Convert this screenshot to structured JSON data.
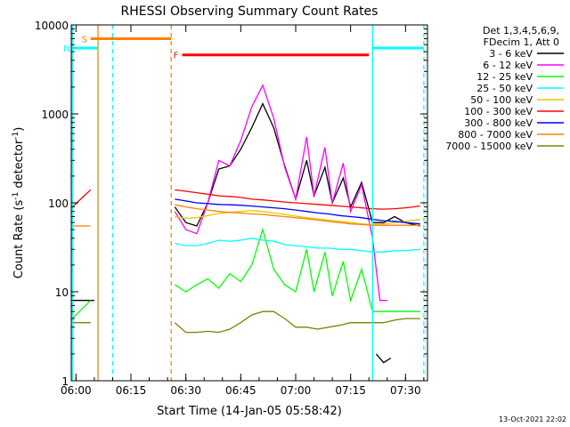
{
  "chart_data": {
    "type": "line",
    "title": "RHESSI Observing Summary Count Rates",
    "xlabel": "Start Time (14-Jan-05 05:58:42)",
    "ylabel": "Count Rate (s",
    "ylabel_sup": "-1",
    "ylabel_tail": " detector",
    "ylabel_close": ")",
    "y_scale": "log",
    "xlim": [
      "05:58:42",
      "07:36:00"
    ],
    "ylim": [
      1,
      10000
    ],
    "x_tick_labels": [
      "06:00",
      "06:15",
      "06:30",
      "06:45",
      "07:00",
      "07:15",
      "07:30"
    ],
    "x_ticks": [
      "06:00",
      "06:15",
      "06:30",
      "06:45",
      "07:00",
      "07:15",
      "07:30"
    ],
    "y_tick_labels": [
      "1",
      "10",
      "100",
      "1000",
      "10000"
    ],
    "y_ticks": [
      1,
      10,
      100,
      1000,
      10000
    ],
    "timestamp": "13-Oct-2021 22:02",
    "legend_header": [
      "Det 1,3,4,5,6,9,",
      "FDecim 1, Att 0"
    ],
    "legend_position": "right",
    "series": [
      {
        "name": "3 - 6 keV",
        "color": "#000000",
        "segments": [
          [
            [
              "05:59",
              "8"
            ],
            [
              "06:05",
              "8"
            ]
          ],
          [
            [
              "06:27",
              "90"
            ],
            [
              "06:30",
              "60"
            ],
            [
              "06:33",
              "55"
            ],
            [
              "06:36",
              "100"
            ],
            [
              "06:39",
              "240"
            ],
            [
              "06:42",
              "260"
            ],
            [
              "06:45",
              "400"
            ],
            [
              "06:48",
              "700"
            ],
            [
              "06:51",
              "1300"
            ],
            [
              "06:54",
              "700"
            ],
            [
              "06:57",
              "260"
            ],
            [
              "07:00",
              "110"
            ],
            [
              "07:03",
              "300"
            ],
            [
              "07:05",
              "120"
            ],
            [
              "07:08",
              "250"
            ],
            [
              "07:10",
              "100"
            ],
            [
              "07:13",
              "190"
            ],
            [
              "07:15",
              "90"
            ],
            [
              "07:18",
              "170"
            ],
            [
              "07:21",
              "60"
            ],
            [
              "07:24",
              "60"
            ],
            [
              "07:27",
              "70"
            ],
            [
              "07:30",
              "60"
            ],
            [
              "07:34",
              "55"
            ]
          ],
          [
            [
              "07:22",
              "2"
            ],
            [
              "07:24",
              "1.6"
            ],
            [
              "07:26",
              "1.8"
            ]
          ]
        ]
      },
      {
        "name": "6 - 12 keV",
        "color": "#ff00ff",
        "segments": [
          [
            [
              "06:27",
              "80"
            ],
            [
              "06:30",
              "50"
            ],
            [
              "06:33",
              "45"
            ],
            [
              "06:36",
              "100"
            ],
            [
              "06:39",
              "300"
            ],
            [
              "06:42",
              "260"
            ],
            [
              "06:45",
              "500"
            ],
            [
              "06:48",
              "1200"
            ],
            [
              "06:51",
              "2100"
            ],
            [
              "06:54",
              "900"
            ],
            [
              "06:57",
              "250"
            ],
            [
              "07:00",
              "110"
            ],
            [
              "07:03",
              "550"
            ],
            [
              "07:05",
              "120"
            ],
            [
              "07:08",
              "420"
            ],
            [
              "07:10",
              "100"
            ],
            [
              "07:13",
              "280"
            ],
            [
              "07:15",
              "80"
            ],
            [
              "07:18",
              "160"
            ],
            [
              "07:21",
              "40"
            ],
            [
              "07:23",
              "8"
            ],
            [
              "07:25",
              "8"
            ]
          ]
        ]
      },
      {
        "name": "12 - 25 keV",
        "color": "#00ff00",
        "segments": [
          [
            [
              "05:59",
              "5"
            ],
            [
              "06:04",
              "8"
            ]
          ],
          [
            [
              "06:27",
              "12"
            ],
            [
              "06:30",
              "10"
            ],
            [
              "06:33",
              "12"
            ],
            [
              "06:36",
              "14"
            ],
            [
              "06:39",
              "11"
            ],
            [
              "06:42",
              "16"
            ],
            [
              "06:45",
              "13"
            ],
            [
              "06:48",
              "20"
            ],
            [
              "06:51",
              "50"
            ],
            [
              "06:54",
              "18"
            ],
            [
              "06:57",
              "12"
            ],
            [
              "07:00",
              "10"
            ],
            [
              "07:03",
              "30"
            ],
            [
              "07:05",
              "10"
            ],
            [
              "07:08",
              "28"
            ],
            [
              "07:10",
              "9"
            ],
            [
              "07:13",
              "22"
            ],
            [
              "07:15",
              "8"
            ],
            [
              "07:18",
              "18"
            ],
            [
              "07:21",
              "6"
            ],
            [
              "07:24",
              "6"
            ],
            [
              "07:27",
              "6"
            ],
            [
              "07:30",
              "6"
            ],
            [
              "07:34",
              "6"
            ]
          ]
        ]
      },
      {
        "name": "25 - 50 keV",
        "color": "#00ffff",
        "segments": [
          [
            [
              "06:27",
              "35"
            ],
            [
              "06:30",
              "33"
            ],
            [
              "06:33",
              "33"
            ],
            [
              "06:36",
              "35"
            ],
            [
              "06:39",
              "38"
            ],
            [
              "06:42",
              "37"
            ],
            [
              "06:45",
              "38"
            ],
            [
              "06:48",
              "40"
            ],
            [
              "06:51",
              "38"
            ],
            [
              "06:54",
              "37"
            ],
            [
              "06:57",
              "34"
            ],
            [
              "07:00",
              "33"
            ],
            [
              "07:03",
              "32"
            ],
            [
              "07:06",
              "31"
            ],
            [
              "07:09",
              "31"
            ],
            [
              "07:12",
              "30"
            ],
            [
              "07:15",
              "30"
            ],
            [
              "07:18",
              "29"
            ],
            [
              "07:21",
              "28"
            ],
            [
              "07:24",
              "28"
            ],
            [
              "07:27",
              "29"
            ],
            [
              "07:30",
              "29"
            ],
            [
              "07:34",
              "30"
            ]
          ]
        ]
      },
      {
        "name": "50 - 100 keV",
        "color": "#e6c800",
        "segments": [
          [
            [
              "06:27",
              "70"
            ],
            [
              "06:30",
              "67"
            ],
            [
              "06:33",
              "68"
            ],
            [
              "06:36",
              "72"
            ],
            [
              "06:39",
              "76"
            ],
            [
              "06:42",
              "78"
            ],
            [
              "06:45",
              "80"
            ],
            [
              "06:48",
              "82"
            ],
            [
              "06:51",
              "80"
            ],
            [
              "06:54",
              "77"
            ],
            [
              "06:57",
              "74"
            ],
            [
              "07:00",
              "71"
            ],
            [
              "07:03",
              "68"
            ],
            [
              "07:06",
              "66"
            ],
            [
              "07:09",
              "64"
            ],
            [
              "07:12",
              "62"
            ],
            [
              "07:15",
              "60"
            ],
            [
              "07:18",
              "58"
            ],
            [
              "07:21",
              "57"
            ],
            [
              "07:24",
              "58"
            ],
            [
              "07:27",
              "60"
            ],
            [
              "07:30",
              "62"
            ],
            [
              "07:34",
              "65"
            ]
          ]
        ]
      },
      {
        "name": "100 - 300 keV",
        "color": "#ff0000",
        "segments": [
          [
            [
              "05:59",
              "90"
            ],
            [
              "06:04",
              "140"
            ]
          ],
          [
            [
              "06:27",
              "140"
            ],
            [
              "06:30",
              "135"
            ],
            [
              "06:33",
              "130"
            ],
            [
              "06:36",
              "125"
            ],
            [
              "06:39",
              "120"
            ],
            [
              "06:42",
              "118"
            ],
            [
              "06:45",
              "115"
            ],
            [
              "06:48",
              "110"
            ],
            [
              "06:51",
              "108"
            ],
            [
              "06:54",
              "105"
            ],
            [
              "06:57",
              "102"
            ],
            [
              "07:00",
              "100"
            ],
            [
              "07:03",
              "98"
            ],
            [
              "07:06",
              "96"
            ],
            [
              "07:09",
              "94"
            ],
            [
              "07:12",
              "92"
            ],
            [
              "07:15",
              "90"
            ],
            [
              "07:18",
              "88"
            ],
            [
              "07:21",
              "86"
            ],
            [
              "07:24",
              "85"
            ],
            [
              "07:27",
              "86"
            ],
            [
              "07:30",
              "88"
            ],
            [
              "07:34",
              "92"
            ]
          ]
        ]
      },
      {
        "name": "300 - 800 keV",
        "color": "#0000ff",
        "segments": [
          [
            [
              "06:27",
              "110"
            ],
            [
              "06:30",
              "105"
            ],
            [
              "06:33",
              "100"
            ],
            [
              "06:36",
              "98"
            ],
            [
              "06:39",
              "96"
            ],
            [
              "06:42",
              "95"
            ],
            [
              "06:45",
              "94"
            ],
            [
              "06:48",
              "92"
            ],
            [
              "06:51",
              "90"
            ],
            [
              "06:54",
              "88"
            ],
            [
              "06:57",
              "86"
            ],
            [
              "07:00",
              "83"
            ],
            [
              "07:03",
              "80"
            ],
            [
              "07:06",
              "77"
            ],
            [
              "07:09",
              "75"
            ],
            [
              "07:12",
              "72"
            ],
            [
              "07:15",
              "70"
            ],
            [
              "07:18",
              "68"
            ],
            [
              "07:21",
              "65"
            ],
            [
              "07:24",
              "63"
            ],
            [
              "07:27",
              "62"
            ],
            [
              "07:30",
              "60"
            ],
            [
              "07:34",
              "58"
            ]
          ]
        ]
      },
      {
        "name": "800 - 7000 keV",
        "color": "#ff8000",
        "segments": [
          [
            [
              "05:59",
              "55"
            ],
            [
              "06:04",
              "55"
            ]
          ],
          [
            [
              "06:27",
              "95"
            ],
            [
              "06:30",
              "90"
            ],
            [
              "06:33",
              "86"
            ],
            [
              "06:36",
              "83"
            ],
            [
              "06:39",
              "80"
            ],
            [
              "06:42",
              "78"
            ],
            [
              "06:45",
              "77"
            ],
            [
              "06:48",
              "75"
            ],
            [
              "06:51",
              "74"
            ],
            [
              "06:54",
              "72"
            ],
            [
              "06:57",
              "70"
            ],
            [
              "07:00",
              "68"
            ],
            [
              "07:03",
              "66"
            ],
            [
              "07:06",
              "64"
            ],
            [
              "07:09",
              "62"
            ],
            [
              "07:12",
              "60"
            ],
            [
              "07:15",
              "58"
            ],
            [
              "07:18",
              "57"
            ],
            [
              "07:21",
              "56"
            ],
            [
              "07:24",
              "56"
            ],
            [
              "07:27",
              "56"
            ],
            [
              "07:30",
              "56"
            ],
            [
              "07:34",
              "56"
            ]
          ]
        ]
      },
      {
        "name": "7000 - 15000 keV",
        "color": "#808000",
        "segments": [
          [
            [
              "05:59",
              "4.5"
            ],
            [
              "06:04",
              "4.5"
            ]
          ],
          [
            [
              "06:27",
              "4.5"
            ],
            [
              "06:30",
              "3.5"
            ],
            [
              "06:33",
              "3.5"
            ],
            [
              "06:36",
              "3.6"
            ],
            [
              "06:39",
              "3.5"
            ],
            [
              "06:42",
              "3.8"
            ],
            [
              "06:45",
              "4.5"
            ],
            [
              "06:48",
              "5.5"
            ],
            [
              "06:51",
              "6"
            ],
            [
              "06:54",
              "6"
            ],
            [
              "06:57",
              "5"
            ],
            [
              "07:00",
              "4"
            ],
            [
              "07:03",
              "4"
            ],
            [
              "07:06",
              "3.8"
            ],
            [
              "07:09",
              "4"
            ],
            [
              "07:12",
              "4.2"
            ],
            [
              "07:15",
              "4.5"
            ],
            [
              "07:18",
              "4.5"
            ],
            [
              "07:21",
              "4.5"
            ],
            [
              "07:24",
              "4.5"
            ],
            [
              "07:27",
              "4.8"
            ],
            [
              "07:30",
              "5"
            ],
            [
              "07:34",
              "5"
            ]
          ]
        ]
      }
    ],
    "annotations": [
      {
        "label": "S",
        "color": "#ff8000",
        "start": "06:04",
        "end": "06:26",
        "level": 7000
      },
      {
        "label": "N",
        "color": "#00ffff",
        "start": "05:59",
        "end": "06:06",
        "level": 5500
      },
      {
        "label": "F",
        "color": "#ff0000",
        "start": "06:29",
        "end": "07:20",
        "level": 4600
      },
      {
        "label": "",
        "color": "#00ffff",
        "start": "07:21",
        "end": "07:35",
        "level": 5500
      }
    ],
    "vertical_lines": [
      {
        "time": "05:59",
        "color": "#00ffff",
        "style": "solid"
      },
      {
        "time": "06:06",
        "color": "#ff8000",
        "style": "solid"
      },
      {
        "time": "06:10",
        "color": "#00ffff",
        "style": "dashed"
      },
      {
        "time": "06:26",
        "color": "#ff8000",
        "style": "dashed"
      },
      {
        "time": "07:21",
        "color": "#00ffff",
        "style": "solid"
      },
      {
        "time": "07:35",
        "color": "#00ffff",
        "style": "dashed"
      }
    ]
  }
}
